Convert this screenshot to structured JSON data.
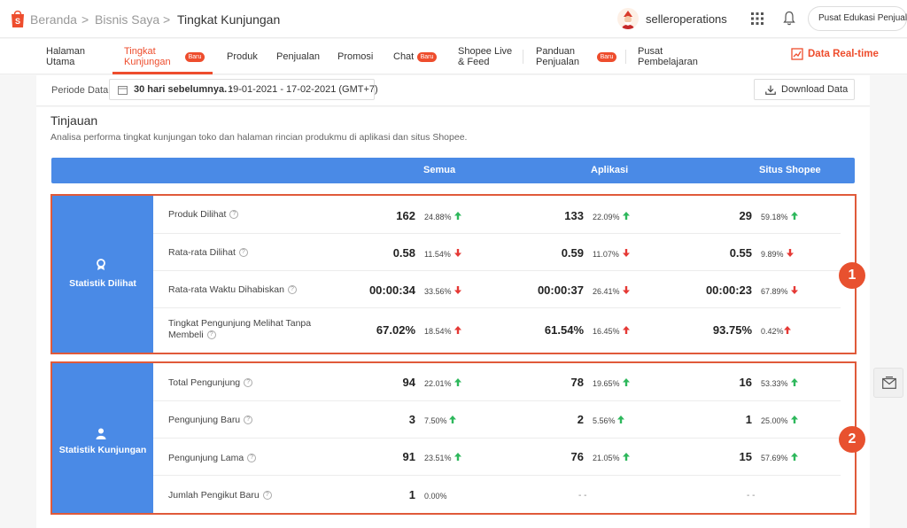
{
  "header": {
    "breadcrumb": [
      "Beranda",
      "Bisnis Saya",
      "Tingkat Kunjungan"
    ],
    "separator": ">",
    "username": "selleroperations",
    "edu_button": "Pusat Edukasi Penjual"
  },
  "nav": {
    "tabs": [
      {
        "line1": "Halaman",
        "line2": "Utama"
      },
      {
        "line1": "Tingkat",
        "line2": "Kunjungan",
        "badge": "Baru"
      },
      {
        "line1": "Produk"
      },
      {
        "line1": "Penjualan"
      },
      {
        "line1": "Promosi"
      },
      {
        "line1": "Chat",
        "badge": "Baru"
      },
      {
        "line1": "Shopee Live",
        "line2": "& Feed"
      },
      {
        "line1": "Panduan",
        "line2": "Penjualan",
        "badge": "Baru"
      },
      {
        "line1": "Pusat",
        "line2": "Pembelajaran"
      }
    ],
    "realtime_label": "Data Real-time"
  },
  "period": {
    "label": "Periode Data",
    "main": "30 hari sebelumnya. :",
    "range": "19-01-2021 - 17-02-2021 (GMT+7)",
    "download": "Download Data"
  },
  "overview": {
    "title": "Tinjauan",
    "description": "Analisa performa tingkat kunjungan toko dan halaman rincian produkmu di aplikasi dan situs Shopee.",
    "columns": [
      "Semua",
      "Aplikasi",
      "Situs Shopee"
    ]
  },
  "groups": [
    {
      "label": "Statistik Dilihat",
      "marker": "1",
      "rows": [
        {
          "metric": "Produk Dilihat",
          "cells": [
            {
              "value": "162",
              "pct": "24.88%",
              "dir": "up"
            },
            {
              "value": "133",
              "pct": "22.09%",
              "dir": "up"
            },
            {
              "value": "29",
              "pct": "59.18%",
              "dir": "up"
            }
          ]
        },
        {
          "metric": "Rata-rata Dilihat",
          "cells": [
            {
              "value": "0.58",
              "pct": "11.54%",
              "dir": "down"
            },
            {
              "value": "0.59",
              "pct": "11.07%",
              "dir": "down"
            },
            {
              "value": "0.55",
              "pct": "9.89%",
              "dir": "down"
            }
          ]
        },
        {
          "metric": "Rata-rata Waktu Dihabiskan",
          "cells": [
            {
              "value": "00:00:34",
              "pct": "33.56%",
              "dir": "down"
            },
            {
              "value": "00:00:37",
              "pct": "26.41%",
              "dir": "down"
            },
            {
              "value": "00:00:23",
              "pct": "67.89%",
              "dir": "down"
            }
          ]
        },
        {
          "metric_line1": "Tingkat Pengunjung Melihat Tanpa",
          "metric_line2": "Membeli",
          "cells": [
            {
              "value": "67.02%",
              "pct": "18.54%",
              "dir": "up"
            },
            {
              "value": "61.54%",
              "pct": "16.45%",
              "dir": "up"
            },
            {
              "value": "93.75%",
              "pct": "0.42%",
              "dir": "up"
            }
          ]
        }
      ]
    },
    {
      "label": "Statistik Kunjungan",
      "marker": "2",
      "rows": [
        {
          "metric": "Total Pengunjung",
          "cells": [
            {
              "value": "94",
              "pct": "22.01%",
              "dir": "up"
            },
            {
              "value": "78",
              "pct": "19.65%",
              "dir": "up"
            },
            {
              "value": "16",
              "pct": "53.33%",
              "dir": "up"
            }
          ]
        },
        {
          "metric": "Pengunjung Baru",
          "cells": [
            {
              "value": "3",
              "pct": "7.50%",
              "dir": "up"
            },
            {
              "value": "2",
              "pct": "5.56%",
              "dir": "up"
            },
            {
              "value": "1",
              "pct": "25.00%",
              "dir": "up"
            }
          ]
        },
        {
          "metric": "Pengunjung Lama",
          "cells": [
            {
              "value": "91",
              "pct": "23.51%",
              "dir": "up"
            },
            {
              "value": "76",
              "pct": "21.05%",
              "dir": "up"
            },
            {
              "value": "15",
              "pct": "57.69%",
              "dir": "up"
            }
          ]
        },
        {
          "metric": "Jumlah Pengikut Baru",
          "cells": [
            {
              "value": "1",
              "pct": "0.00%",
              "dir": "none"
            },
            {
              "dash": "- -"
            },
            {
              "dash": "- -"
            }
          ]
        }
      ]
    }
  ],
  "colors": {
    "accent": "#ee4d2d",
    "header_blue": "#4a8ae6",
    "up": "#2eb85c",
    "down": "#e53935",
    "marker": "#e8512f"
  },
  "icons": [
    "shopee-logo-icon",
    "grid-icon",
    "bell-icon",
    "trend-chart-icon",
    "calendar-icon",
    "download-icon",
    "ribbon-icon",
    "user-icon",
    "help-icon",
    "arrow-up-icon",
    "arrow-down-icon",
    "mail-icon"
  ]
}
